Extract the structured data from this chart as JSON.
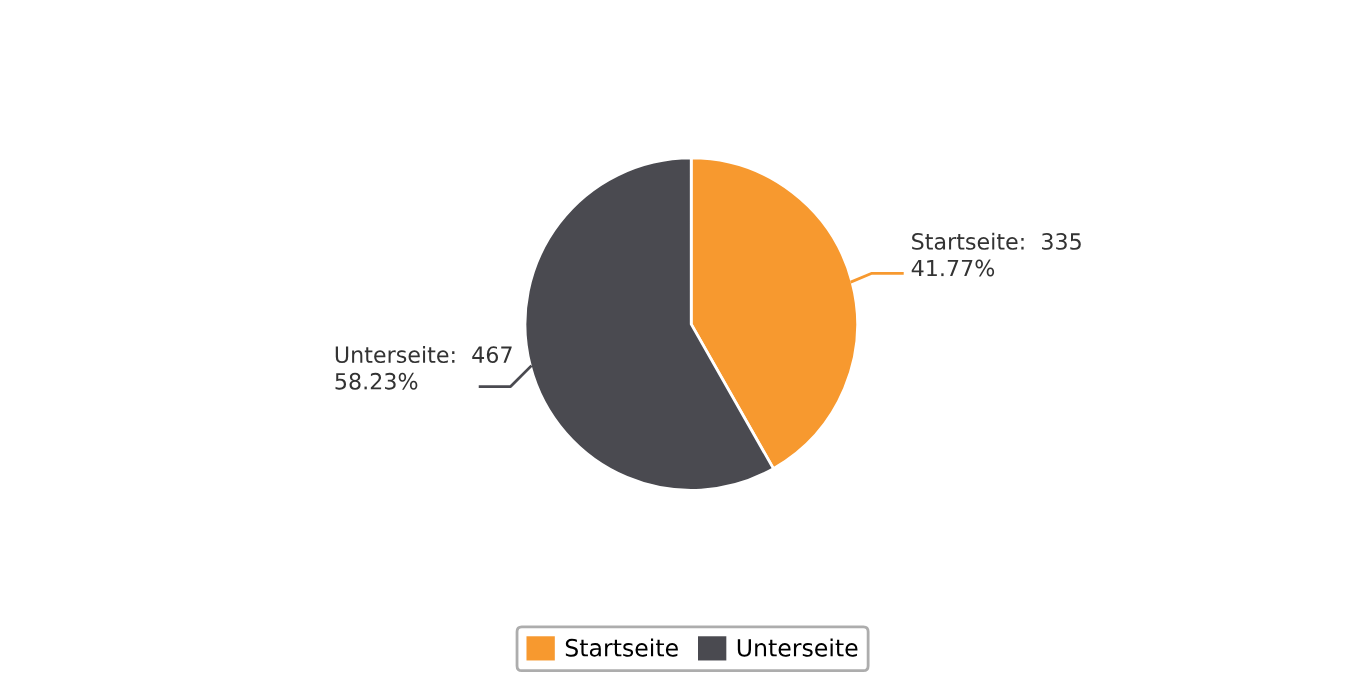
{
  "chart_data": {
    "type": "pie",
    "categories": [
      "Startseite",
      "Unterseite"
    ],
    "values": [
      335,
      467
    ],
    "colors": [
      "#f7992f",
      "#4a4a50"
    ],
    "value_labels": [
      "Startseite:  335\n41.77%",
      "Unterseite:  467\n58.23%"
    ],
    "legend": "bottom"
  }
}
